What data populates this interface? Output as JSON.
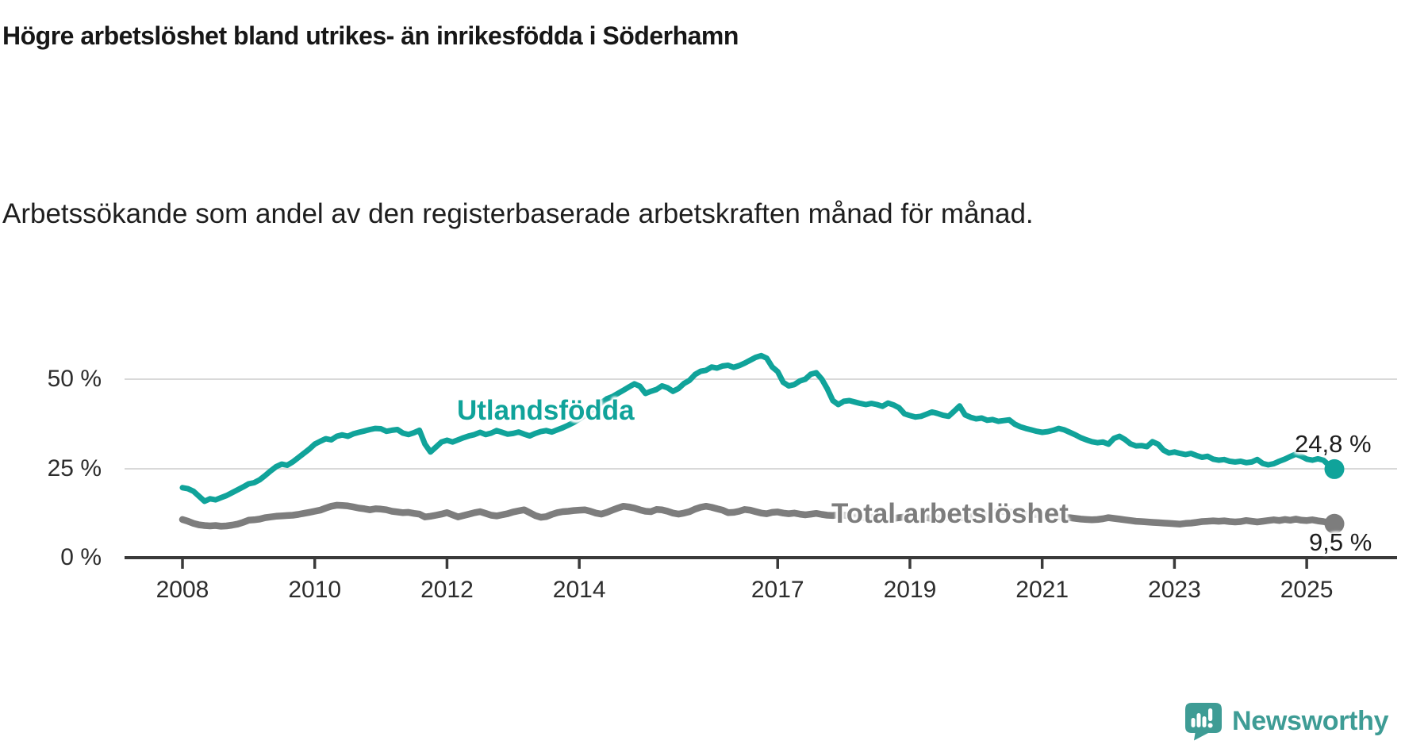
{
  "header": {
    "title": "Högre arbetslöshet bland utrikes- än inrikesfödda i Söderhamn",
    "subtitle": "Arbetssökande som andel av den registerbaserade arbetskraften månad för månad."
  },
  "chart_data": {
    "type": "line",
    "unit": "percent",
    "frequency": "monthly",
    "period_start": "2008-01",
    "period_end": "2025-06",
    "grid": "horizontal",
    "ylim": [
      0,
      60
    ],
    "y_gridlines": [
      25,
      50
    ],
    "y_tick_labels": [
      "50 %",
      "25 %",
      "0 %"
    ],
    "x_tick_labels": [
      "2008",
      "2010",
      "2012",
      "2014",
      "2017",
      "2019",
      "2021",
      "2023",
      "2025"
    ],
    "series": [
      {
        "name": "Utlandsfödda",
        "color": "#10a39a",
        "end_label": "24,8 %",
        "end_value": 24.8,
        "values": [
          19.6,
          19.3,
          18.6,
          17.2,
          15.8,
          16.5,
          16.2,
          16.8,
          17.4,
          18.2,
          19.0,
          19.8,
          20.7,
          21.0,
          21.8,
          23.0,
          24.3,
          25.5,
          26.2,
          25.9,
          26.8,
          28.0,
          29.2,
          30.4,
          31.8,
          32.6,
          33.3,
          33.0,
          34.0,
          34.4,
          34.0,
          34.7,
          35.1,
          35.5,
          35.9,
          36.2,
          36.1,
          35.4,
          35.7,
          35.9,
          34.9,
          34.5,
          35.0,
          35.7,
          31.8,
          29.6,
          31.0,
          32.4,
          32.9,
          32.4,
          33.0,
          33.6,
          34.1,
          34.5,
          35.1,
          34.5,
          34.9,
          35.6,
          35.1,
          34.6,
          34.8,
          35.2,
          34.6,
          34.1,
          34.8,
          35.3,
          35.6,
          35.2,
          35.8,
          36.4,
          37.1,
          37.9,
          38.8,
          39.9,
          41.0,
          42.2,
          43.4,
          44.5,
          45.1,
          46.0,
          46.9,
          47.8,
          48.7,
          48.0,
          46.0,
          46.6,
          47.1,
          48.1,
          47.6,
          46.6,
          47.4,
          48.8,
          49.7,
          51.3,
          52.2,
          52.5,
          53.4,
          53.1,
          53.7,
          53.9,
          53.3,
          53.8,
          54.5,
          55.3,
          56.1,
          56.6,
          55.9,
          53.4,
          52.1,
          49.1,
          48.1,
          48.5,
          49.5,
          50.0,
          51.4,
          51.8,
          50.0,
          47.3,
          44.0,
          42.9,
          43.8,
          44.0,
          43.6,
          43.2,
          42.9,
          43.2,
          42.9,
          42.4,
          43.3,
          42.8,
          42.0,
          40.3,
          39.8,
          39.4,
          39.6,
          40.2,
          40.8,
          40.4,
          39.9,
          39.6,
          41.0,
          42.5,
          40.0,
          39.3,
          38.9,
          39.1,
          38.5,
          38.7,
          38.2,
          38.4,
          38.6,
          37.4,
          36.7,
          36.2,
          35.8,
          35.4,
          35.1,
          35.3,
          35.7,
          36.2,
          35.8,
          35.1,
          34.4,
          33.6,
          33.0,
          32.5,
          32.2,
          32.4,
          31.8,
          33.4,
          34.0,
          33.1,
          31.9,
          31.3,
          31.4,
          31.1,
          32.5,
          31.8,
          30.1,
          29.3,
          29.6,
          29.2,
          28.9,
          29.2,
          28.6,
          28.1,
          28.4,
          27.6,
          27.3,
          27.5,
          27.0,
          26.8,
          27.0,
          26.6,
          26.8,
          27.5,
          26.4,
          26.0,
          26.3,
          27.0,
          27.6,
          28.3,
          29.0,
          28.4,
          27.6,
          27.3,
          27.7,
          27.3,
          25.9,
          24.8
        ]
      },
      {
        "name": "Total arbetslöshet",
        "color": "#7d7d7d",
        "end_label": "9,5 %",
        "end_value": 9.5,
        "values": [
          10.7,
          10.2,
          9.6,
          9.2,
          9.0,
          8.9,
          9.0,
          8.8,
          8.9,
          9.1,
          9.4,
          9.9,
          10.5,
          10.6,
          10.8,
          11.2,
          11.4,
          11.6,
          11.7,
          11.8,
          11.9,
          12.1,
          12.4,
          12.7,
          13.0,
          13.3,
          13.9,
          14.4,
          14.7,
          14.6,
          14.5,
          14.2,
          13.9,
          13.7,
          13.4,
          13.7,
          13.6,
          13.4,
          13.0,
          12.8,
          12.6,
          12.7,
          12.4,
          12.2,
          11.4,
          11.6,
          11.9,
          12.2,
          12.6,
          12.0,
          11.4,
          11.8,
          12.2,
          12.6,
          12.9,
          12.4,
          11.9,
          11.7,
          12.0,
          12.3,
          12.8,
          13.1,
          13.4,
          12.6,
          11.8,
          11.3,
          11.5,
          12.1,
          12.6,
          12.9,
          13.0,
          13.2,
          13.3,
          13.4,
          13.0,
          12.5,
          12.2,
          12.7,
          13.3,
          13.9,
          14.4,
          14.2,
          13.9,
          13.4,
          13.0,
          12.9,
          13.5,
          13.4,
          13.0,
          12.5,
          12.2,
          12.5,
          12.9,
          13.6,
          14.1,
          14.4,
          14.1,
          13.7,
          13.3,
          12.6,
          12.7,
          13.0,
          13.5,
          13.3,
          12.9,
          12.5,
          12.3,
          12.7,
          12.8,
          12.5,
          12.3,
          12.5,
          12.2,
          12.0,
          12.2,
          12.4,
          12.1,
          11.9,
          11.8,
          12.0,
          11.9,
          11.7,
          11.5,
          11.4,
          11.2,
          11.3,
          11.5,
          11.3,
          11.1,
          11.0,
          11.2,
          11.4,
          11.3,
          11.1,
          11.0,
          11.2,
          11.0,
          11.1,
          11.3,
          11.2,
          11.0,
          11.1,
          11.3,
          11.5,
          11.6,
          11.7,
          12.0,
          12.6,
          12.9,
          13.0,
          12.8,
          12.6,
          12.4,
          12.2,
          12.0,
          12.1,
          12.0,
          11.9,
          11.7,
          11.5,
          11.3,
          11.2,
          11.0,
          10.8,
          10.7,
          10.6,
          10.7,
          10.9,
          11.2,
          11.0,
          10.8,
          10.6,
          10.4,
          10.2,
          10.1,
          10.0,
          9.9,
          9.8,
          9.7,
          9.6,
          9.5,
          9.4,
          9.6,
          9.7,
          9.9,
          10.1,
          10.2,
          10.3,
          10.2,
          10.3,
          10.1,
          10.0,
          10.1,
          10.4,
          10.2,
          10.0,
          10.2,
          10.4,
          10.6,
          10.4,
          10.7,
          10.5,
          10.8,
          10.5,
          10.4,
          10.6,
          10.3,
          10.1,
          9.8,
          9.5
        ]
      }
    ]
  },
  "branding": {
    "logo_text": "Newsworthy",
    "logo_color": "#3e9c95",
    "logo_icon": "newsworthy-speech-bubble-bar-chart-icon"
  }
}
